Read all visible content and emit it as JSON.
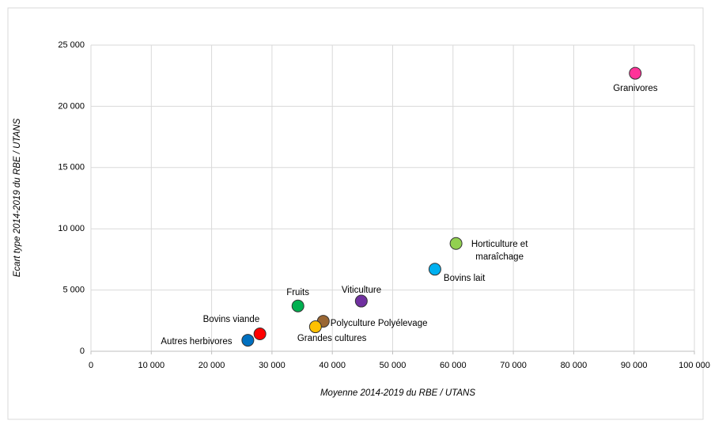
{
  "chart_data": {
    "type": "scatter",
    "x_label": "Moyenne 2014-2019 du RBE / UTANS",
    "y_label": "Ecart type 2014-2019 du RBE / UTANS",
    "xlim": [
      0,
      100000
    ],
    "xticks": [
      0,
      {
        "value": 10000,
        "label": "10 000"
      },
      {
        "value": 20000,
        "label": "20 000"
      },
      {
        "value": 30000,
        "label": "30 000"
      },
      {
        "value": 40000,
        "label": "40 000"
      },
      {
        "value": 50000,
        "label": "50 000"
      },
      {
        "value": 60000,
        "label": "60 000"
      },
      {
        "value": 70000,
        "label": "70 000"
      },
      {
        "value": 80000,
        "label": "80 000"
      },
      {
        "value": 90000,
        "label": "90 000"
      },
      {
        "value": 100000,
        "label": "100 000"
      }
    ],
    "ylim": [
      0,
      25000
    ],
    "yticks": [
      0,
      {
        "value": 5000,
        "label": "5 000"
      },
      {
        "value": 10000,
        "label": "10 000"
      },
      {
        "value": 15000,
        "label": "15 000"
      },
      {
        "value": 20000,
        "label": "20 000"
      },
      {
        "value": 25000,
        "label": "25 000"
      }
    ],
    "grid": true,
    "series": [
      {
        "name": "Granivores",
        "color": "#ff3399",
        "x": [
          90200
        ],
        "values": [
          22700
        ]
      },
      {
        "name": "Horticulture et maraîchage",
        "color": "#92d050",
        "x": [
          60500
        ],
        "values": [
          8800
        ]
      },
      {
        "name": "Bovins lait",
        "color": "#00b0f0",
        "x": [
          57000
        ],
        "values": [
          6700
        ]
      },
      {
        "name": "Viticulture",
        "color": "#7030a0",
        "x": [
          44800
        ],
        "values": [
          4100
        ]
      },
      {
        "name": "Fruits",
        "color": "#00b050",
        "x": [
          34300
        ],
        "values": [
          3700
        ]
      },
      {
        "name": "Polyculture Polyélevage",
        "color": "#996633",
        "x": [
          38500
        ],
        "values": [
          2450
        ]
      },
      {
        "name": "Grandes cultures",
        "color": "#ffc000",
        "x": [
          37200
        ],
        "values": [
          2000
        ]
      },
      {
        "name": "Bovins viande",
        "color": "#ff0000",
        "x": [
          28000
        ],
        "values": [
          1420
        ]
      },
      {
        "name": "Autres herbivores",
        "color": "#0070c0",
        "x": [
          26000
        ],
        "values": [
          900
        ]
      }
    ]
  }
}
